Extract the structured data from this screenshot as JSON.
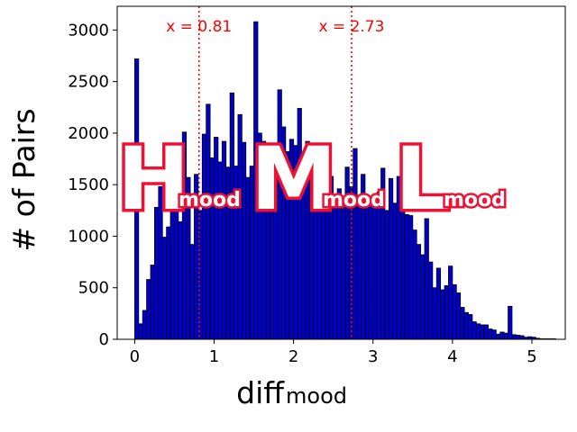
{
  "chart_data": {
    "type": "bar",
    "xlabel_main": "diff",
    "xlabel_sub": "mood",
    "ylabel": "# of Pairs",
    "xlim": [
      -0.22,
      5.42
    ],
    "ylim": [
      0,
      3230
    ],
    "xticks": [
      0,
      1,
      2,
      3,
      4,
      5
    ],
    "yticks": [
      0,
      500,
      1000,
      1500,
      2000,
      2500,
      3000
    ],
    "bar_color": "#0000cc",
    "bar_edge_color": "#000000",
    "bin_width": 0.05,
    "bins_start": 0.0,
    "values": [
      2720,
      150,
      280,
      580,
      720,
      1280,
      1480,
      990,
      1090,
      1360,
      1570,
      1140,
      2010,
      1570,
      920,
      1600,
      1250,
      1990,
      2280,
      1760,
      1960,
      1720,
      1920,
      1670,
      2390,
      1680,
      2180,
      1910,
      1570,
      1680,
      3080,
      2000,
      1920,
      1610,
      1890,
      1700,
      2420,
      2060,
      1820,
      1940,
      1880,
      2240,
      1780,
      1920,
      1730,
      1620,
      1700,
      1350,
      1780,
      1580,
      1370,
      1460,
      1300,
      1670,
      1480,
      1850,
      1320,
      1600,
      1380,
      1310,
      1380,
      1430,
      1660,
      1250,
      1560,
      1320,
      1580,
      1480,
      1210,
      1200,
      1060,
      920,
      820,
      1170,
      750,
      500,
      690,
      480,
      520,
      710,
      530,
      450,
      310,
      260,
      240,
      170,
      150,
      140,
      140,
      100,
      90,
      50,
      70,
      60,
      320,
      45,
      40,
      35,
      20,
      25,
      20,
      10,
      5,
      5,
      5,
      5,
      0,
      0,
      0,
      0
    ],
    "vlines": [
      {
        "x": 0.81,
        "label": "x = 0.81",
        "color": "#ff0000",
        "style": "dotted"
      },
      {
        "x": 2.73,
        "label": "x = 2.73",
        "color": "#ff0000",
        "style": "dotted"
      }
    ],
    "region_labels": [
      {
        "main": "H",
        "sub": "mood"
      },
      {
        "main": "M",
        "sub": "mood"
      },
      {
        "main": "L",
        "sub": "mood"
      }
    ]
  }
}
